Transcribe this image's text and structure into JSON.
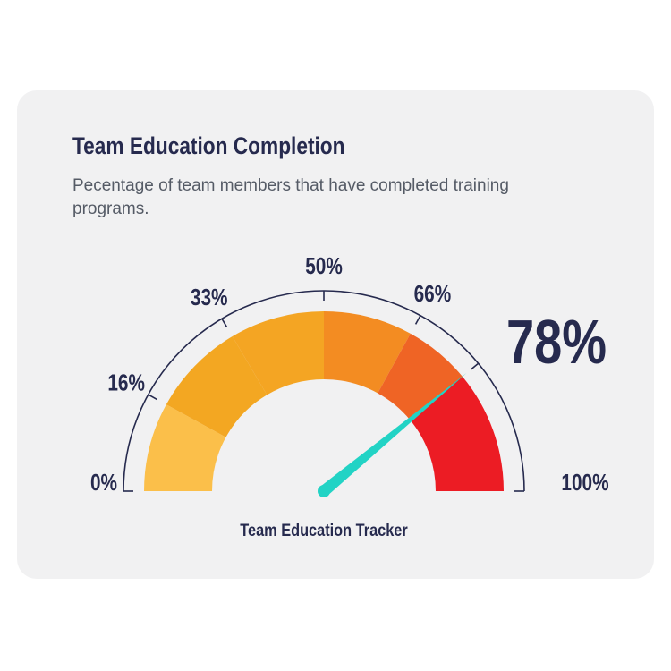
{
  "header": {
    "title": "Team Education Completion",
    "subtitle": "Pecentage of team members that have completed training programs."
  },
  "chart_data": {
    "type": "gauge",
    "value": 78,
    "value_label": "78%",
    "min": 0,
    "max": 100,
    "caption": "Team Education Tracker",
    "ticks": [
      {
        "value": 0,
        "label": "0%"
      },
      {
        "value": 16,
        "label": "16%"
      },
      {
        "value": 33,
        "label": "33%"
      },
      {
        "value": 50,
        "label": "50%"
      },
      {
        "value": 66,
        "label": "66%"
      },
      {
        "value": 100,
        "label": "100%"
      }
    ],
    "bands": [
      {
        "from": 0,
        "to": 16,
        "color": "#fbbf4a"
      },
      {
        "from": 16,
        "to": 33,
        "color": "#f3a722"
      },
      {
        "from": 33,
        "to": 50,
        "color": "#f4a523"
      },
      {
        "from": 50,
        "to": 66,
        "color": "#f38c22"
      },
      {
        "from": 66,
        "to": 78,
        "color": "#ef6425"
      },
      {
        "from": 78,
        "to": 100,
        "color": "#ec1c24"
      }
    ],
    "colors": {
      "needle": "#22d3c5",
      "text": "#262a4e",
      "outline": "#262a4e"
    }
  }
}
